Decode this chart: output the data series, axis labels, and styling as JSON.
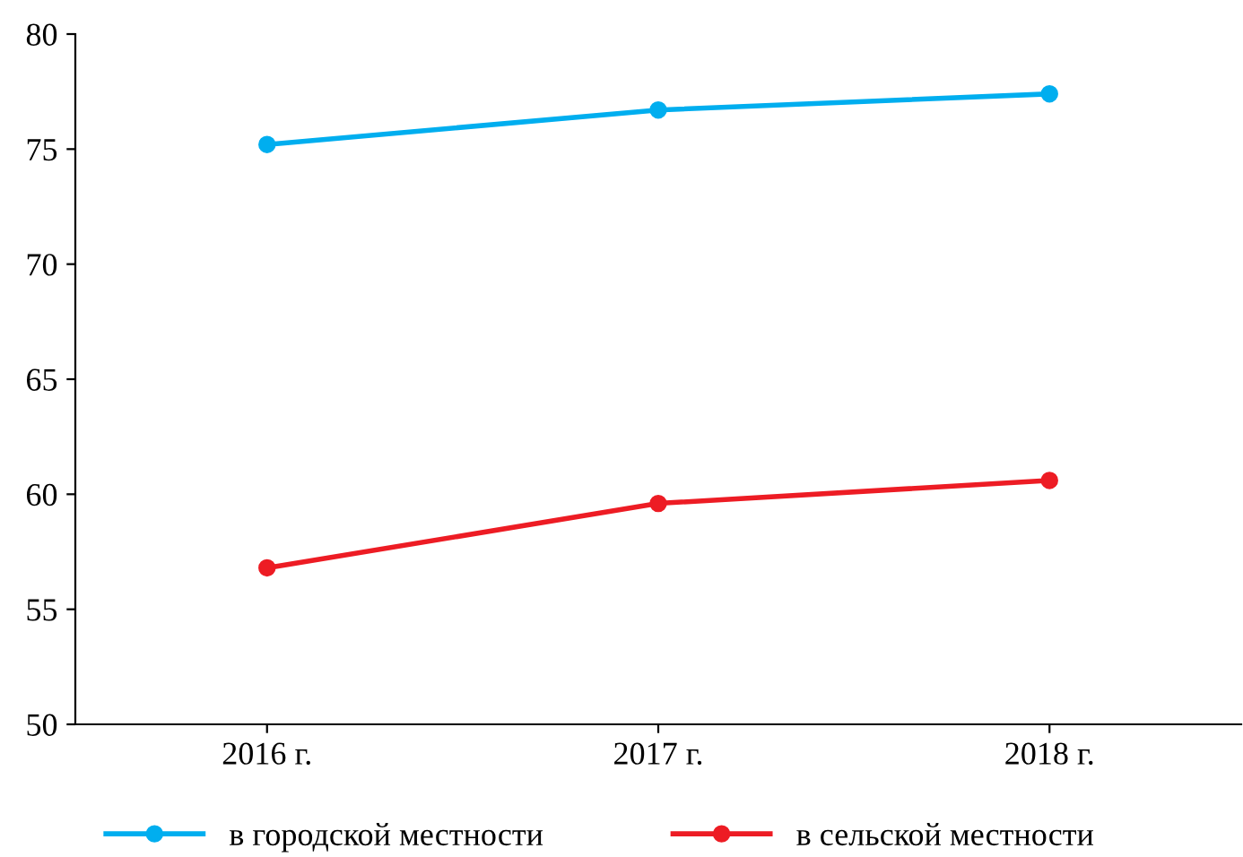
{
  "chart_data": {
    "type": "line",
    "categories": [
      "2016 г.",
      "2017 г.",
      "2018 г."
    ],
    "series": [
      {
        "name": "в городской местности",
        "color": "#00aeef",
        "values": [
          75.2,
          76.7,
          77.4
        ]
      },
      {
        "name": "в сельской местности",
        "color": "#ed1c24",
        "values": [
          56.8,
          59.6,
          60.6
        ]
      }
    ],
    "ylim": [
      50,
      80
    ],
    "yticks": [
      50,
      55,
      60,
      65,
      70,
      75,
      80
    ],
    "marker": "circle",
    "line_style": "solid",
    "grid": false,
    "legend": "bottom"
  }
}
